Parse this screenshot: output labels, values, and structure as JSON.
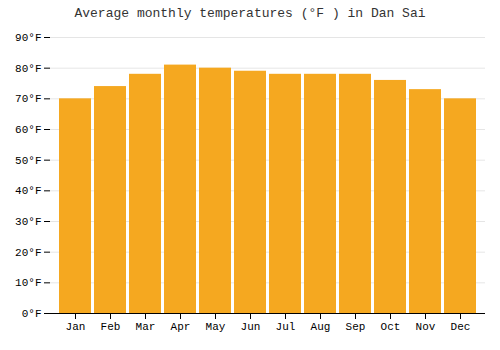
{
  "chart_data": {
    "type": "bar",
    "title": "Average monthly temperatures (°F ) in Dan Sai",
    "categories": [
      "Jan",
      "Feb",
      "Mar",
      "Apr",
      "May",
      "Jun",
      "Jul",
      "Aug",
      "Sep",
      "Oct",
      "Nov",
      "Dec"
    ],
    "values": [
      70,
      74,
      78,
      81,
      80,
      79,
      78,
      78,
      78,
      76,
      73,
      70
    ],
    "color": "#F5A820",
    "ylim": [
      0,
      90
    ],
    "yticks": [
      {
        "value": 0,
        "label": "0°F"
      },
      {
        "value": 10,
        "label": "10°F"
      },
      {
        "value": 20,
        "label": "20°F"
      },
      {
        "value": 30,
        "label": "30°F"
      },
      {
        "value": 40,
        "label": "40°F"
      },
      {
        "value": 50,
        "label": "50°F"
      },
      {
        "value": 60,
        "label": "60°F"
      },
      {
        "value": 70,
        "label": "70°F"
      },
      {
        "value": 80,
        "label": "80°F"
      },
      {
        "value": 90,
        "label": "90°F"
      }
    ],
    "grid": true
  }
}
